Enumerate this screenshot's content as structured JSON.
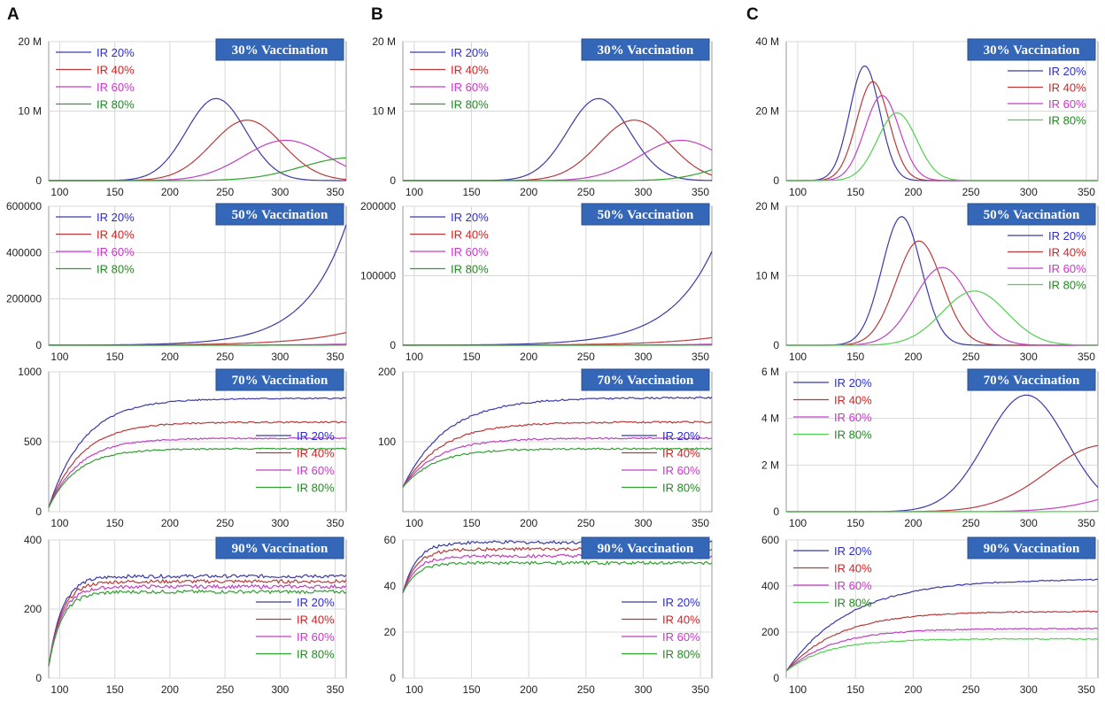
{
  "panel_letters": [
    "A",
    "B",
    "C"
  ],
  "chart_data": [
    {
      "id": "A1",
      "column": "A",
      "type": "line",
      "title": "30% Vaccination",
      "shape": "bell",
      "xlim": [
        90,
        360
      ],
      "ylim": [
        0,
        20000000
      ],
      "xticks": [
        100,
        150,
        200,
        250,
        300,
        350
      ],
      "yticks": [
        {
          "v": 0,
          "label": "0"
        },
        {
          "v": 10000000,
          "label": "10 M"
        },
        {
          "v": 20000000,
          "label": "20 M"
        }
      ],
      "legend_pos": "top-left",
      "series": [
        {
          "name": "IR 20%",
          "color": "#3a3aa8",
          "legend_color": "#2b2bd6",
          "peak_x": 242,
          "peak_y": 11800000,
          "sigma": 27
        },
        {
          "name": "IR 40%",
          "color": "#b83a3a",
          "legend_color": "#d42020",
          "peak_x": 270,
          "peak_y": 8700000,
          "sigma": 32
        },
        {
          "name": "IR 60%",
          "color": "#c040c0",
          "legend_color": "#d030d0",
          "peak_x": 305,
          "peak_y": 5800000,
          "sigma": 38
        },
        {
          "name": "IR 80%",
          "color": "#30a030",
          "legend_color": "#208a20",
          "peak_x": 365,
          "peak_y": 3300000,
          "sigma": 45
        }
      ]
    },
    {
      "id": "A2",
      "column": "A",
      "type": "line",
      "title": "50% Vaccination",
      "shape": "exp",
      "xlim": [
        90,
        360
      ],
      "ylim": [
        0,
        600000
      ],
      "xticks": [
        100,
        150,
        200,
        250,
        300,
        350
      ],
      "yticks": [
        {
          "v": 0,
          "label": "0"
        },
        {
          "v": 200000,
          "label": "200000"
        },
        {
          "v": 400000,
          "label": "400000"
        },
        {
          "v": 600000,
          "label": "600000"
        }
      ],
      "legend_pos": "top-left",
      "series": [
        {
          "name": "IR 20%",
          "color": "#3a3aa8",
          "legend_color": "#2b2bd6",
          "end_y": 520000,
          "rate": 0.027
        },
        {
          "name": "IR 40%",
          "color": "#b83a3a",
          "legend_color": "#d42020",
          "end_y": 55000,
          "rate": 0.02
        },
        {
          "name": "IR 60%",
          "color": "#c040c0",
          "legend_color": "#d030d0",
          "end_y": 5000,
          "rate": 0.02
        },
        {
          "name": "IR 80%",
          "color": "#30a030",
          "legend_color": "#208a20",
          "end_y": 800,
          "rate": 0.02
        }
      ]
    },
    {
      "id": "A3",
      "column": "A",
      "type": "line",
      "title": "70% Vaccination",
      "shape": "plateau",
      "xlim": [
        90,
        360
      ],
      "ylim": [
        0,
        1000
      ],
      "xticks": [
        100,
        150,
        200,
        250,
        300,
        350
      ],
      "yticks": [
        {
          "v": 0,
          "label": "0"
        },
        {
          "v": 500,
          "label": "500"
        },
        {
          "v": 1000,
          "label": "1000"
        }
      ],
      "legend_pos": "bottom-right",
      "series": [
        {
          "name": "IR 20%",
          "color": "#3a3aa8",
          "legend_color": "#2b2bd6",
          "start_y": 30,
          "plateau_y": 810,
          "tau": 32,
          "noise": 5
        },
        {
          "name": "IR 40%",
          "color": "#b83a3a",
          "legend_color": "#d42020",
          "start_y": 30,
          "plateau_y": 640,
          "tau": 30,
          "noise": 5
        },
        {
          "name": "IR 60%",
          "color": "#c040c0",
          "legend_color": "#d030d0",
          "start_y": 30,
          "plateau_y": 525,
          "tau": 28,
          "noise": 5
        },
        {
          "name": "IR 80%",
          "color": "#30a030",
          "legend_color": "#208a20",
          "start_y": 30,
          "plateau_y": 450,
          "tau": 26,
          "noise": 5
        }
      ]
    },
    {
      "id": "A4",
      "column": "A",
      "type": "line",
      "title": "90% Vaccination",
      "shape": "plateau",
      "xlim": [
        90,
        360
      ],
      "ylim": [
        0,
        400
      ],
      "xticks": [
        100,
        150,
        200,
        250,
        300,
        350
      ],
      "yticks": [
        {
          "v": 0,
          "label": "0"
        },
        {
          "v": 200,
          "label": "200"
        },
        {
          "v": 400,
          "label": "400"
        }
      ],
      "legend_pos": "bottom-right",
      "series": [
        {
          "name": "IR 20%",
          "color": "#3a3aa8",
          "legend_color": "#2b2bd6",
          "start_y": 35,
          "plateau_y": 295,
          "tau": 12,
          "noise": 5
        },
        {
          "name": "IR 40%",
          "color": "#b83a3a",
          "legend_color": "#d42020",
          "start_y": 35,
          "plateau_y": 280,
          "tau": 12,
          "noise": 5
        },
        {
          "name": "IR 60%",
          "color": "#c040c0",
          "legend_color": "#d030d0",
          "start_y": 35,
          "plateau_y": 265,
          "tau": 12,
          "noise": 5
        },
        {
          "name": "IR 80%",
          "color": "#30a030",
          "legend_color": "#208a20",
          "start_y": 35,
          "plateau_y": 250,
          "tau": 12,
          "noise": 5
        }
      ]
    },
    {
      "id": "B1",
      "column": "B",
      "type": "line",
      "title": "30% Vaccination",
      "shape": "bell",
      "xlim": [
        90,
        360
      ],
      "ylim": [
        0,
        20000000
      ],
      "xticks": [
        100,
        150,
        200,
        250,
        300,
        350
      ],
      "yticks": [
        {
          "v": 0,
          "label": "0"
        },
        {
          "v": 10000000,
          "label": "10 M"
        },
        {
          "v": 20000000,
          "label": "20 M"
        }
      ],
      "legend_pos": "top-left",
      "series": [
        {
          "name": "IR 20%",
          "color": "#3a3aa8",
          "legend_color": "#2b2bd6",
          "peak_x": 261,
          "peak_y": 11800000,
          "sigma": 27
        },
        {
          "name": "IR 40%",
          "color": "#b83a3a",
          "legend_color": "#d42020",
          "peak_x": 292,
          "peak_y": 8700000,
          "sigma": 31
        },
        {
          "name": "IR 60%",
          "color": "#c040c0",
          "legend_color": "#d030d0",
          "peak_x": 333,
          "peak_y": 5800000,
          "sigma": 36
        },
        {
          "name": "IR 80%",
          "color": "#30a030",
          "legend_color": "#208a20",
          "peak_x": 400,
          "peak_y": 3000000,
          "sigma": 35
        }
      ]
    },
    {
      "id": "B2",
      "column": "B",
      "type": "line",
      "title": "50% Vaccination",
      "shape": "exp",
      "xlim": [
        90,
        360
      ],
      "ylim": [
        0,
        200000
      ],
      "xticks": [
        100,
        150,
        200,
        250,
        300,
        350
      ],
      "yticks": [
        {
          "v": 0,
          "label": "0"
        },
        {
          "v": 100000,
          "label": "100000"
        },
        {
          "v": 200000,
          "label": "200000"
        }
      ],
      "legend_pos": "top-left",
      "series": [
        {
          "name": "IR 20%",
          "color": "#3a3aa8",
          "legend_color": "#2b2bd6",
          "end_y": 135000,
          "rate": 0.026
        },
        {
          "name": "IR 40%",
          "color": "#b83a3a",
          "legend_color": "#d42020",
          "end_y": 11000,
          "rate": 0.02
        },
        {
          "name": "IR 60%",
          "color": "#c040c0",
          "legend_color": "#d030d0",
          "end_y": 1500,
          "rate": 0.02
        },
        {
          "name": "IR 80%",
          "color": "#30a030",
          "legend_color": "#208a20",
          "end_y": 300,
          "rate": 0.02
        }
      ]
    },
    {
      "id": "B3",
      "column": "B",
      "type": "line",
      "title": "70% Vaccination",
      "shape": "plateau",
      "xlim": [
        90,
        360
      ],
      "ylim": [
        0,
        200
      ],
      "xticks": [
        100,
        150,
        200,
        250,
        300,
        350
      ],
      "yticks": [
        {
          "v": 100,
          "label": "100"
        },
        {
          "v": 200,
          "label": "200"
        }
      ],
      "legend_pos": "bottom-right",
      "series": [
        {
          "name": "IR 20%",
          "color": "#3a3aa8",
          "legend_color": "#2b2bd6",
          "start_y": 35,
          "plateau_y": 163,
          "tau": 38,
          "noise": 1.2
        },
        {
          "name": "IR 40%",
          "color": "#b83a3a",
          "legend_color": "#d42020",
          "start_y": 35,
          "plateau_y": 128,
          "tau": 34,
          "noise": 1.2
        },
        {
          "name": "IR 60%",
          "color": "#c040c0",
          "legend_color": "#d030d0",
          "start_y": 35,
          "plateau_y": 105,
          "tau": 30,
          "noise": 1.2
        },
        {
          "name": "IR 80%",
          "color": "#30a030",
          "legend_color": "#208a20",
          "start_y": 35,
          "plateau_y": 90,
          "tau": 28,
          "noise": 1.2
        }
      ]
    },
    {
      "id": "B4",
      "column": "B",
      "type": "line",
      "title": "90% Vaccination",
      "shape": "plateau",
      "xlim": [
        90,
        360
      ],
      "ylim": [
        0,
        60
      ],
      "xticks": [
        100,
        150,
        200,
        250,
        300,
        350
      ],
      "yticks": [
        {
          "v": 0,
          "label": "0"
        },
        {
          "v": 20,
          "label": "20"
        },
        {
          "v": 40,
          "label": "40"
        },
        {
          "v": 60,
          "label": "60"
        }
      ],
      "legend_pos": "bottom-right",
      "series": [
        {
          "name": "IR 20%",
          "color": "#3a3aa8",
          "legend_color": "#2b2bd6",
          "start_y": 37,
          "plateau_y": 59,
          "tau": 12,
          "noise": 0.7
        },
        {
          "name": "IR 40%",
          "color": "#b83a3a",
          "legend_color": "#d42020",
          "start_y": 37,
          "plateau_y": 56,
          "tau": 12,
          "noise": 0.7
        },
        {
          "name": "IR 60%",
          "color": "#c040c0",
          "legend_color": "#d030d0",
          "start_y": 37,
          "plateau_y": 53,
          "tau": 12,
          "noise": 0.7
        },
        {
          "name": "IR 80%",
          "color": "#30a030",
          "legend_color": "#208a20",
          "start_y": 37,
          "plateau_y": 50,
          "tau": 12,
          "noise": 0.7
        }
      ]
    },
    {
      "id": "C1",
      "column": "C",
      "type": "line",
      "title": "30% Vaccination",
      "shape": "bell",
      "xlim": [
        90,
        360
      ],
      "ylim": [
        0,
        40000000
      ],
      "xticks": [
        100,
        150,
        200,
        250,
        300,
        350
      ],
      "yticks": [
        {
          "v": 0,
          "label": "0"
        },
        {
          "v": 20000000,
          "label": "20 M"
        },
        {
          "v": 40000000,
          "label": "40 M"
        }
      ],
      "legend_pos": "right",
      "series": [
        {
          "name": "IR 20%",
          "color": "#3a3aa8",
          "legend_color": "#2b2bd6",
          "peak_x": 158,
          "peak_y": 33000000,
          "sigma": 13
        },
        {
          "name": "IR 40%",
          "color": "#b83a3a",
          "legend_color": "#d42020",
          "peak_x": 165,
          "peak_y": 28500000,
          "sigma": 14
        },
        {
          "name": "IR 60%",
          "color": "#c040c0",
          "legend_color": "#d030d0",
          "peak_x": 173,
          "peak_y": 24500000,
          "sigma": 15
        },
        {
          "name": "IR 80%",
          "color": "#50d050",
          "legend_color": "#208a20",
          "peak_x": 186,
          "peak_y": 19500000,
          "sigma": 17
        }
      ]
    },
    {
      "id": "C2",
      "column": "C",
      "type": "line",
      "title": "50% Vaccination",
      "shape": "bell",
      "xlim": [
        90,
        360
      ],
      "ylim": [
        0,
        20000000
      ],
      "xticks": [
        100,
        150,
        200,
        250,
        300,
        350
      ],
      "yticks": [
        {
          "v": 0,
          "label": "0"
        },
        {
          "v": 10000000,
          "label": "10 M"
        },
        {
          "v": 20000000,
          "label": "20 M"
        }
      ],
      "legend_pos": "right",
      "series": [
        {
          "name": "IR 20%",
          "color": "#3a3aa8",
          "legend_color": "#2b2bd6",
          "peak_x": 190,
          "peak_y": 18500000,
          "sigma": 17
        },
        {
          "name": "IR 40%",
          "color": "#b83a3a",
          "legend_color": "#d42020",
          "peak_x": 205,
          "peak_y": 15000000,
          "sigma": 20
        },
        {
          "name": "IR 60%",
          "color": "#c040c0",
          "legend_color": "#d030d0",
          "peak_x": 225,
          "peak_y": 11200000,
          "sigma": 24
        },
        {
          "name": "IR 80%",
          "color": "#50d050",
          "legend_color": "#208a20",
          "peak_x": 253,
          "peak_y": 7800000,
          "sigma": 28
        }
      ]
    },
    {
      "id": "C3",
      "column": "C",
      "type": "line",
      "title": "70% Vaccination",
      "shape": "bell",
      "xlim": [
        90,
        360
      ],
      "ylim": [
        0,
        6000000
      ],
      "xticks": [
        100,
        150,
        200,
        250,
        300,
        350
      ],
      "yticks": [
        {
          "v": 0,
          "label": "0"
        },
        {
          "v": 2000000,
          "label": "2 M"
        },
        {
          "v": 4000000,
          "label": "4 M"
        },
        {
          "v": 6000000,
          "label": "6 M"
        }
      ],
      "legend_pos": "top-left",
      "series": [
        {
          "name": "IR 20%",
          "color": "#3a3aa8",
          "legend_color": "#2b2bd6",
          "peak_x": 298,
          "peak_y": 5000000,
          "sigma": 35
        },
        {
          "name": "IR 40%",
          "color": "#b83a3a",
          "legend_color": "#d42020",
          "peak_x": 365,
          "peak_y": 2850000,
          "sigma": 48
        },
        {
          "name": "IR 60%",
          "color": "#c040c0",
          "legend_color": "#d030d0",
          "peak_x": 440,
          "peak_y": 1500000,
          "sigma": 55
        },
        {
          "name": "IR 80%",
          "color": "#50d050",
          "legend_color": "#208a20",
          "peak_x": 520,
          "peak_y": 600000,
          "sigma": 60
        }
      ]
    },
    {
      "id": "C4",
      "column": "C",
      "type": "line",
      "title": "90% Vaccination",
      "shape": "plateau",
      "xlim": [
        90,
        360
      ],
      "ylim": [
        0,
        600
      ],
      "xticks": [
        100,
        150,
        200,
        250,
        300,
        350
      ],
      "yticks": [
        {
          "v": 0,
          "label": "0"
        },
        {
          "v": 200,
          "label": "200"
        },
        {
          "v": 400,
          "label": "400"
        },
        {
          "v": 600,
          "label": "600"
        }
      ],
      "legend_pos": "top-left",
      "series": [
        {
          "name": "IR 20%",
          "color": "#3a3aa8",
          "legend_color": "#2b2bd6",
          "start_y": 30,
          "plateau_y": 430,
          "tau": 55,
          "noise": 2.5
        },
        {
          "name": "IR 40%",
          "color": "#b83a3a",
          "legend_color": "#d42020",
          "start_y": 30,
          "plateau_y": 290,
          "tau": 45,
          "noise": 2.5
        },
        {
          "name": "IR 60%",
          "color": "#c040c0",
          "legend_color": "#d030d0",
          "start_y": 30,
          "plateau_y": 215,
          "tau": 40,
          "noise": 2.5
        },
        {
          "name": "IR 80%",
          "color": "#50d050",
          "legend_color": "#208a20",
          "start_y": 30,
          "plateau_y": 170,
          "tau": 35,
          "noise": 2.5
        }
      ]
    }
  ]
}
